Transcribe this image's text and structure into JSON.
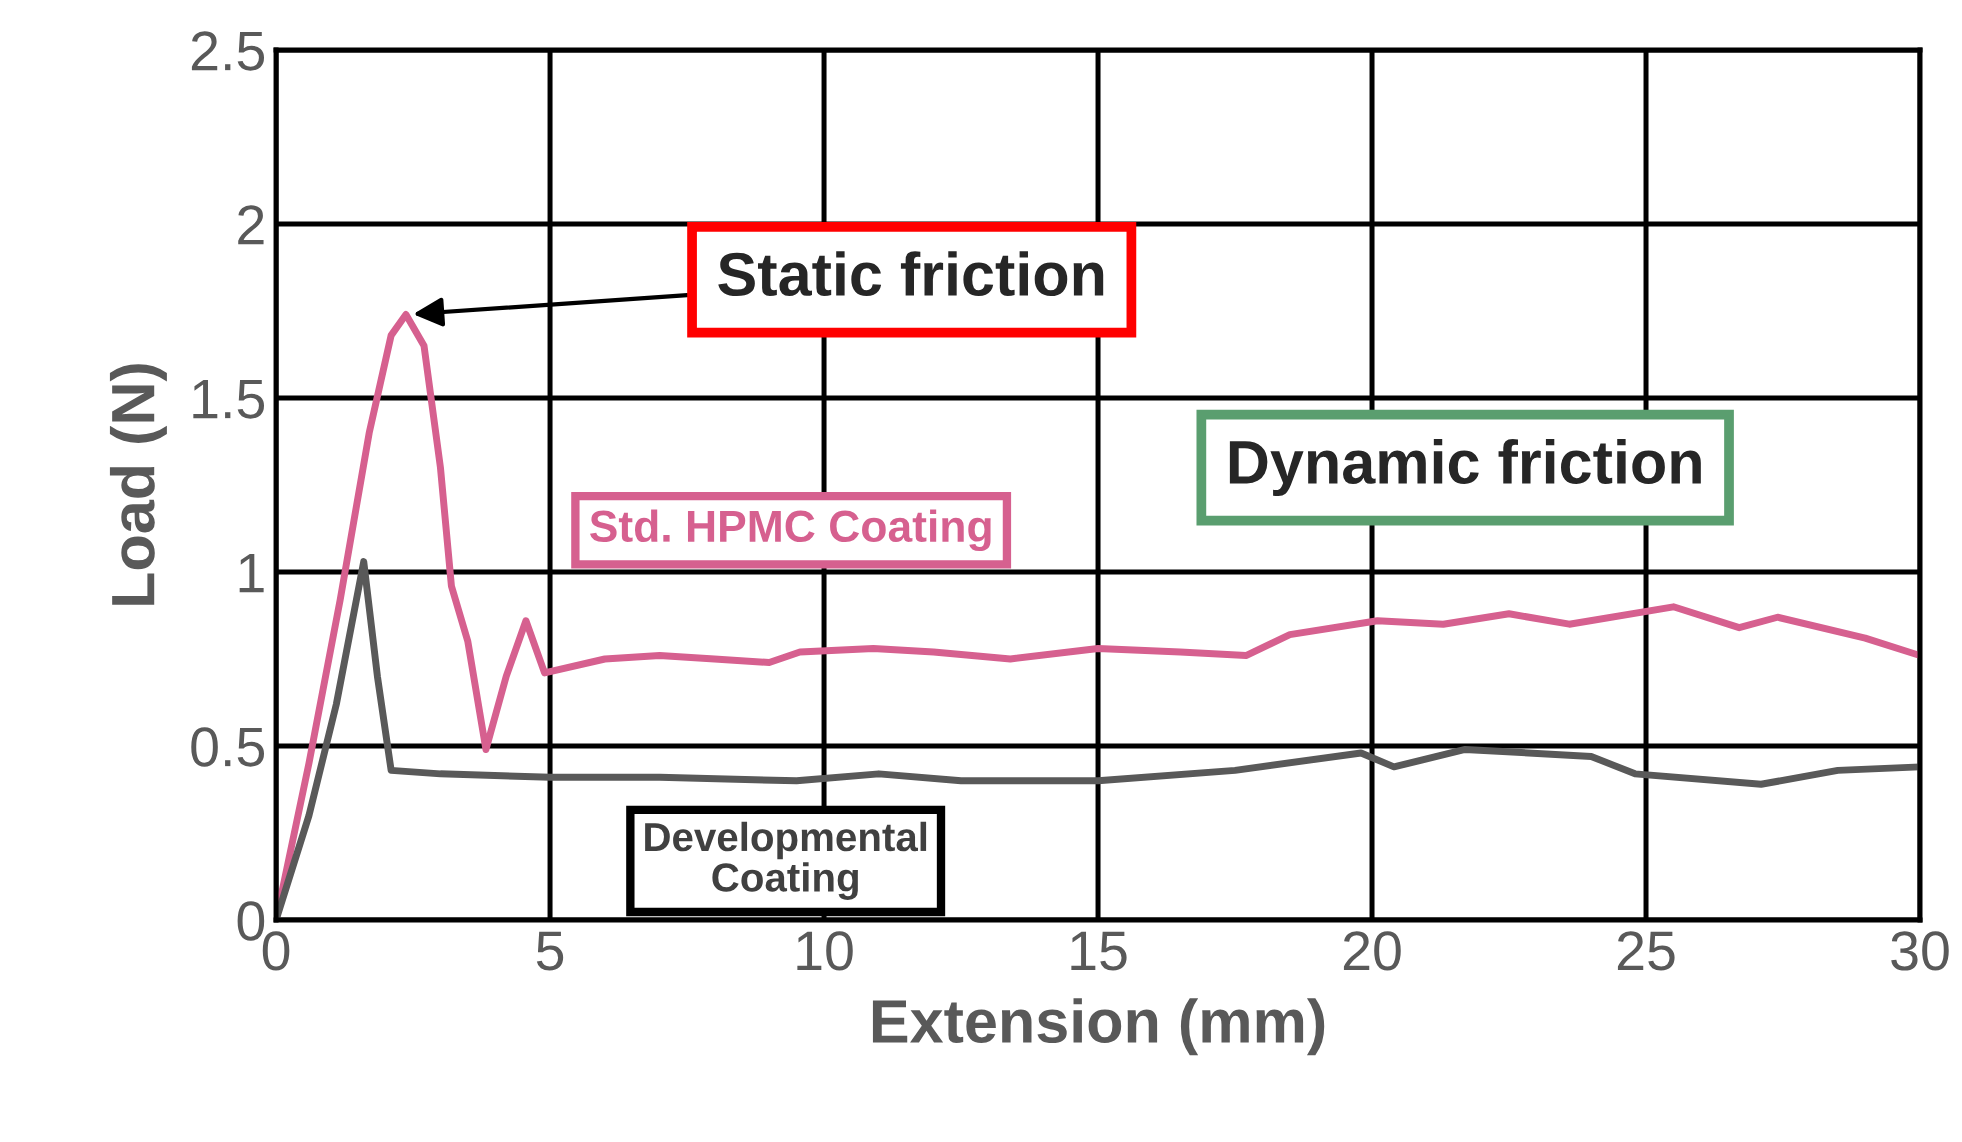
{
  "chart_data": {
    "type": "line",
    "xlabel": "Extension (mm)",
    "ylabel": "Load (N)",
    "xlim": [
      0,
      30
    ],
    "xticks": [
      0,
      5,
      10,
      15,
      20,
      25,
      30
    ],
    "ylim": [
      0,
      2.5
    ],
    "yticks": [
      0,
      0.5,
      1,
      1.5,
      2,
      2.5
    ],
    "grid": true,
    "legend": false,
    "marker": "none",
    "line_style": "solid",
    "series": [
      {
        "name": "Std. HPMC Coating",
        "color": "#d6608f",
        "x": [
          0,
          0.6,
          1.17,
          1.7,
          2.1,
          2.37,
          2.7,
          3.0,
          3.2,
          3.5,
          3.83,
          4.2,
          4.56,
          4.9,
          6,
          7,
          8,
          9,
          9.56,
          10.9,
          12,
          13.4,
          15,
          16.5,
          17.7,
          18.5,
          20.1,
          21.3,
          22.5,
          23.6,
          25.5,
          26.7,
          27.4,
          29.0,
          30
        ],
        "values": [
          0,
          0.45,
          0.92,
          1.4,
          1.68,
          1.74,
          1.65,
          1.3,
          0.96,
          0.8,
          0.49,
          0.7,
          0.86,
          0.71,
          0.75,
          0.76,
          0.75,
          0.74,
          0.77,
          0.78,
          0.77,
          0.75,
          0.78,
          0.77,
          0.76,
          0.82,
          0.86,
          0.85,
          0.88,
          0.85,
          0.9,
          0.84,
          0.87,
          0.81,
          0.76
        ]
      },
      {
        "name": "Developmental\nCoating",
        "color": "#595959",
        "x": [
          0,
          0.6,
          1.1,
          1.6,
          1.85,
          2.1,
          3,
          5,
          7,
          9.5,
          11,
          12.5,
          15,
          17.5,
          19.8,
          20.4,
          21.7,
          24,
          24.8,
          27.1,
          28.5,
          30
        ],
        "values": [
          0,
          0.3,
          0.62,
          1.03,
          0.7,
          0.43,
          0.42,
          0.41,
          0.41,
          0.4,
          0.42,
          0.4,
          0.4,
          0.43,
          0.48,
          0.44,
          0.49,
          0.47,
          0.42,
          0.39,
          0.43,
          0.44
        ]
      }
    ],
    "annotations": [
      {
        "text": "Static friction",
        "x": 2.4,
        "y": 1.74
      },
      "Dynamic friction"
    ]
  }
}
